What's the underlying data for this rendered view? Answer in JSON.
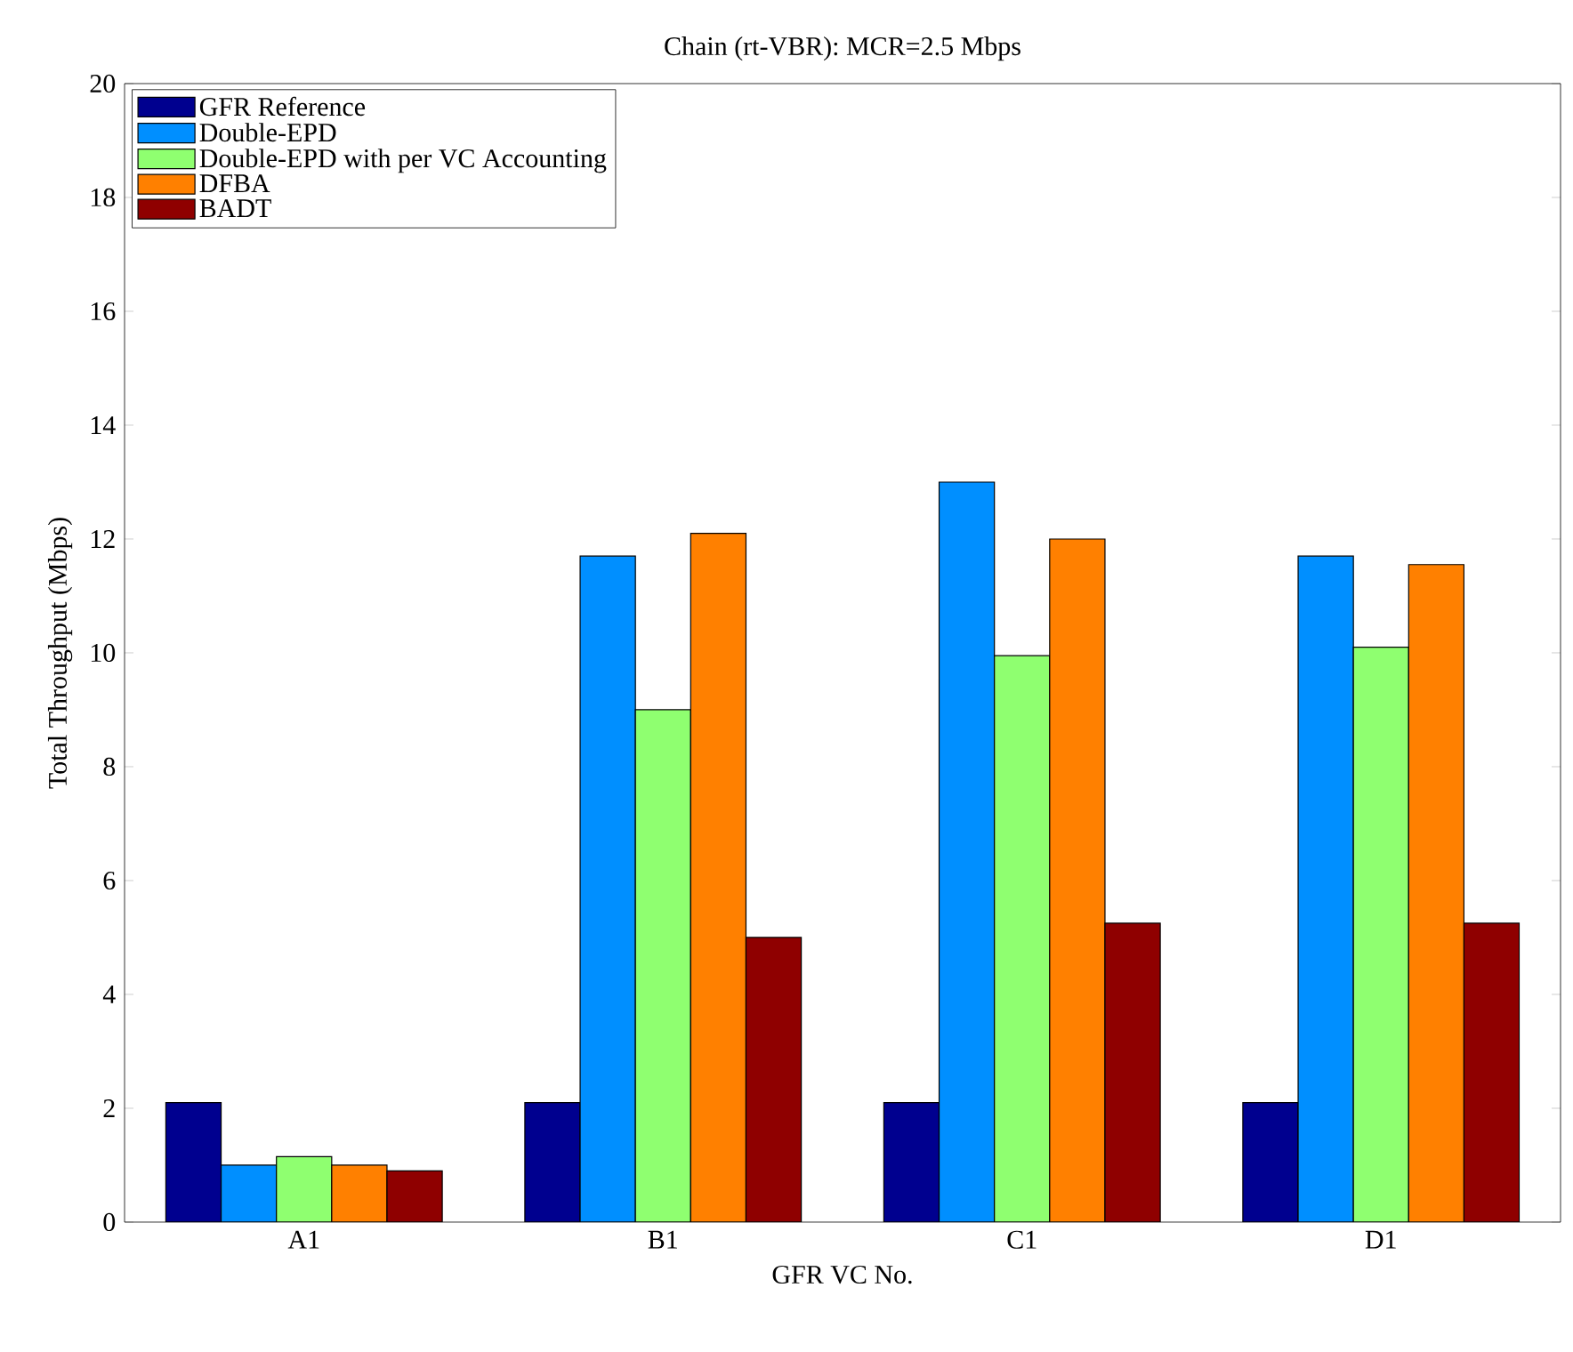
{
  "chart_data": {
    "type": "bar",
    "title": "Chain (rt-VBR): MCR=2.5 Mbps",
    "xlabel": "GFR VC No.",
    "ylabel": "Total Throughput (Mbps)",
    "categories": [
      "A1",
      "B1",
      "C1",
      "D1"
    ],
    "series": [
      {
        "name": "GFR Reference",
        "color": "#00008f",
        "values": [
          2.1,
          2.1,
          2.1,
          2.1
        ]
      },
      {
        "name": "Double-EPD",
        "color": "#008fff",
        "values": [
          1.0,
          11.7,
          13.0,
          11.7
        ]
      },
      {
        "name": "Double-EPD with per VC Accounting",
        "color": "#8fff70",
        "values": [
          1.15,
          9.0,
          9.95,
          10.1
        ]
      },
      {
        "name": "DFBA",
        "color": "#ff8000",
        "values": [
          1.0,
          12.1,
          12.0,
          11.55
        ]
      },
      {
        "name": "BADT",
        "color": "#8f0000",
        "values": [
          0.9,
          5.0,
          5.25,
          5.25
        ]
      }
    ],
    "ylim": [
      0,
      20
    ],
    "yticks": [
      0,
      2,
      4,
      6,
      8,
      10,
      12,
      14,
      16,
      18,
      20
    ],
    "grid": false,
    "legend": "top left"
  }
}
